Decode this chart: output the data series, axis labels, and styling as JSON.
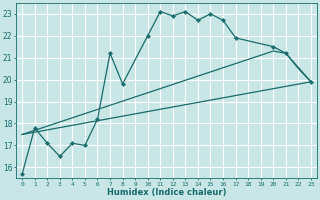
{
  "xlabel": "Humidex (Indice chaleur)",
  "xlim": [
    -0.5,
    23.5
  ],
  "ylim": [
    15.5,
    23.5
  ],
  "yticks": [
    16,
    17,
    18,
    19,
    20,
    21,
    22,
    23
  ],
  "xticks": [
    0,
    1,
    2,
    3,
    4,
    5,
    6,
    7,
    8,
    9,
    10,
    11,
    12,
    13,
    14,
    15,
    16,
    17,
    18,
    19,
    20,
    21,
    22,
    23
  ],
  "bg_color": "#c8e6e6",
  "line_color": "#1a6b6b",
  "grid_color": "#ffffff",
  "series": [
    {
      "x": [
        0,
        1,
        2,
        3,
        4,
        5,
        6,
        7,
        8,
        10,
        11,
        12,
        13,
        14,
        15,
        16,
        17,
        20,
        21,
        23
      ],
      "y": [
        15.7,
        17.8,
        17.1,
        16.5,
        17.1,
        17.0,
        18.2,
        21.2,
        19.8,
        22.0,
        23.1,
        22.9,
        23.1,
        22.7,
        23.0,
        22.7,
        21.9,
        21.5,
        21.2,
        19.9
      ],
      "with_markers": true
    },
    {
      "x": [
        0,
        23
      ],
      "y": [
        17.5,
        19.9
      ],
      "with_markers": false
    },
    {
      "x": [
        0,
        20,
        21,
        22,
        23
      ],
      "y": [
        17.5,
        21.3,
        21.2,
        20.5,
        19.9
      ],
      "with_markers": false
    }
  ]
}
